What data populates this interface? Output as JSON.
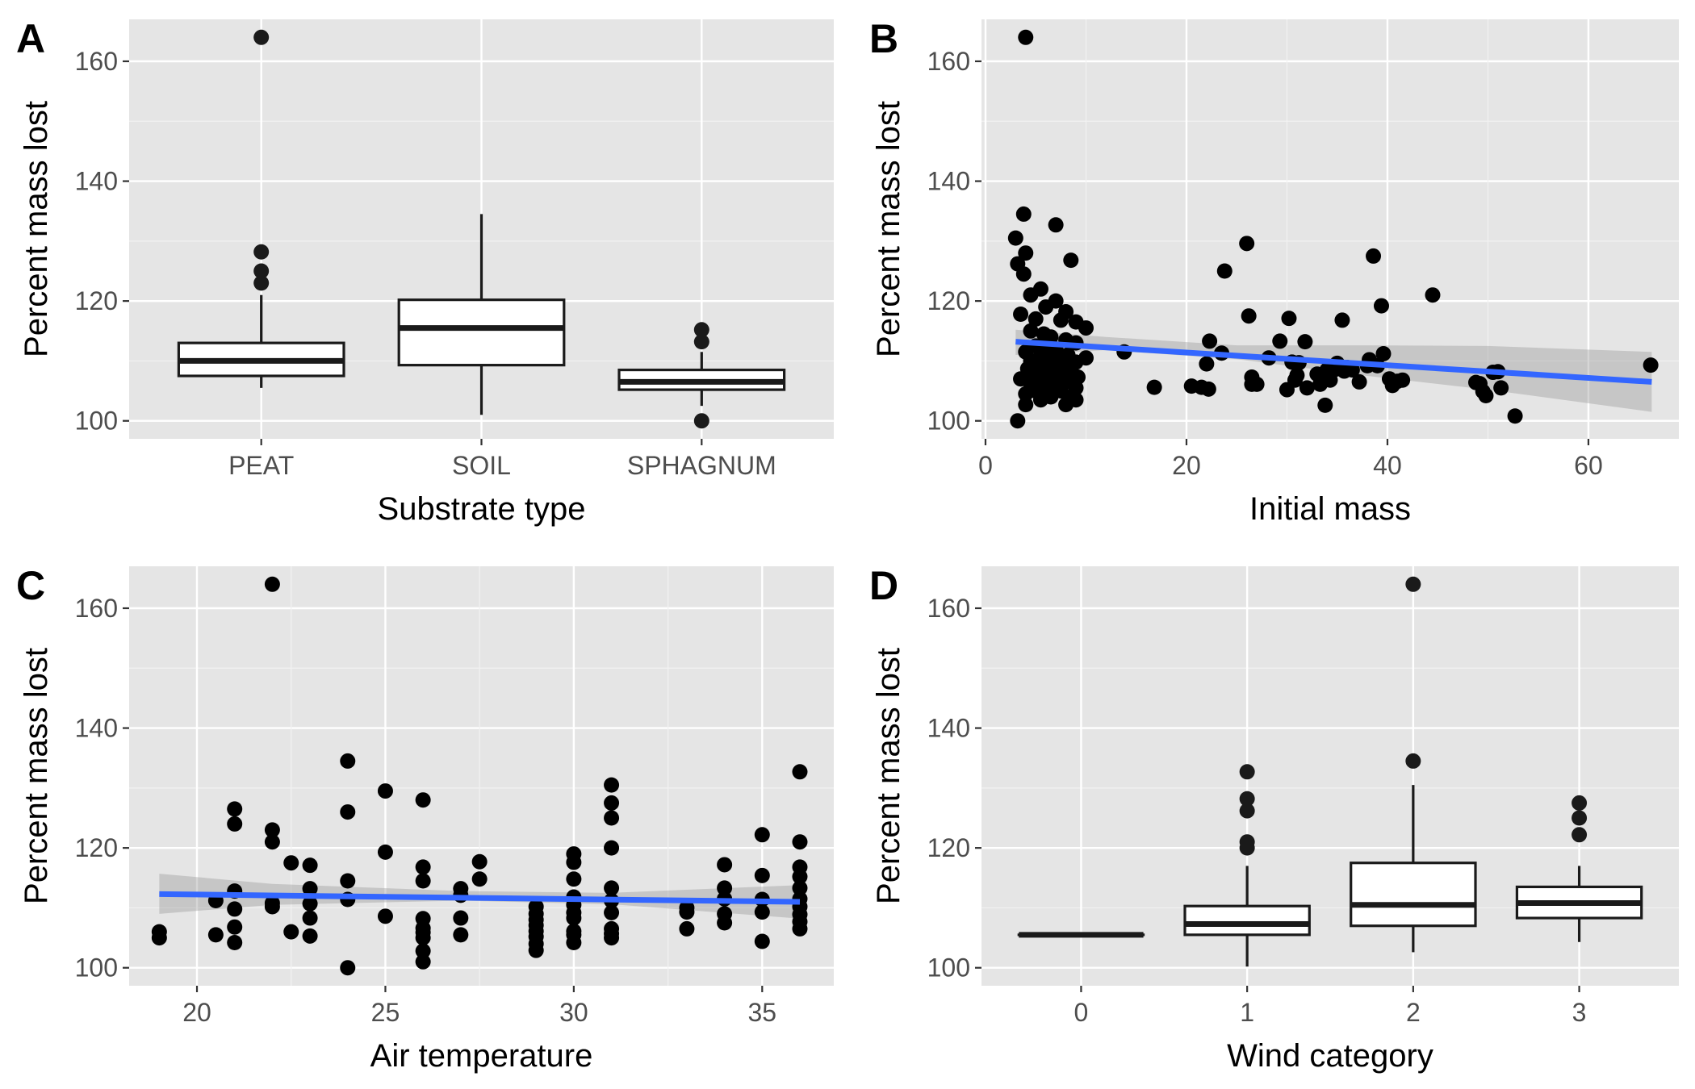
{
  "chart_data": [
    {
      "panel": "A",
      "type": "box",
      "xlabel": "Substrate type",
      "ylabel": "Percent mass lost",
      "ylim": [
        97,
        167
      ],
      "yticks": [
        100,
        120,
        140,
        160
      ],
      "categories": [
        "PEAT",
        "SOIL",
        "SPHAGNUM"
      ],
      "boxes": [
        {
          "category": "PEAT",
          "lower_whisker": 105.5,
          "q1": 107.5,
          "median": 110.0,
          "q3": 113.0,
          "upper_whisker": 121.0,
          "outliers": [
            123.0,
            125.0,
            128.2,
            164.0
          ]
        },
        {
          "category": "SOIL",
          "lower_whisker": 101.0,
          "q1": 109.3,
          "median": 115.5,
          "q3": 120.2,
          "upper_whisker": 134.5,
          "outliers": []
        },
        {
          "category": "SPHAGNUM",
          "lower_whisker": 102.5,
          "q1": 105.2,
          "median": 106.5,
          "q3": 108.5,
          "upper_whisker": 111.5,
          "outliers": [
            100.0,
            113.2,
            115.2
          ]
        }
      ]
    },
    {
      "panel": "B",
      "type": "scatter",
      "xlabel": "Initial mass",
      "ylabel": "Percent mass lost",
      "xlim": [
        -0.4,
        69
      ],
      "ylim": [
        97,
        167
      ],
      "xticks": [
        0,
        20,
        40,
        60
      ],
      "yticks": [
        100,
        120,
        140,
        160
      ],
      "points": [
        [
          4,
          164
        ],
        [
          3.8,
          134.5
        ],
        [
          7,
          132.7
        ],
        [
          3,
          130.5
        ],
        [
          4,
          128
        ],
        [
          3.2,
          126.2
        ],
        [
          8.5,
          126.8
        ],
        [
          3.8,
          124.5
        ],
        [
          5.5,
          122
        ],
        [
          4.5,
          121
        ],
        [
          7,
          120
        ],
        [
          6,
          119
        ],
        [
          8,
          118.2
        ],
        [
          3.5,
          117.8
        ],
        [
          5,
          117
        ],
        [
          7.5,
          116.8
        ],
        [
          9,
          116.5
        ],
        [
          10,
          115.5
        ],
        [
          4.5,
          115
        ],
        [
          5.8,
          114.5
        ],
        [
          6.5,
          114
        ],
        [
          8,
          113.5
        ],
        [
          9,
          113
        ],
        [
          5,
          112.5
        ],
        [
          6.2,
          112
        ],
        [
          7,
          112
        ],
        [
          4,
          111.5
        ],
        [
          5.5,
          111
        ],
        [
          6.8,
          111
        ],
        [
          8.2,
          111
        ],
        [
          10,
          110.5
        ],
        [
          4.5,
          110
        ],
        [
          5,
          110
        ],
        [
          6,
          110
        ],
        [
          7.5,
          110
        ],
        [
          9,
          109.8
        ],
        [
          5,
          109.5
        ],
        [
          6.3,
          109.2
        ],
        [
          8,
          109
        ],
        [
          4.2,
          108.7
        ],
        [
          6,
          108.5
        ],
        [
          7,
          108.5
        ],
        [
          8.5,
          108.2
        ],
        [
          5.2,
          108
        ],
        [
          6.8,
          108
        ],
        [
          4.8,
          107.5
        ],
        [
          7.2,
          107.5
        ],
        [
          9.2,
          107.3
        ],
        [
          3.5,
          107
        ],
        [
          5.5,
          107
        ],
        [
          6.5,
          106.8
        ],
        [
          8,
          106.5
        ],
        [
          4.5,
          106.2
        ],
        [
          7,
          106
        ],
        [
          6,
          105.8
        ],
        [
          9,
          105.5
        ],
        [
          5,
          105
        ],
        [
          7.5,
          105
        ],
        [
          4,
          104.5
        ],
        [
          8.5,
          104
        ],
        [
          6.5,
          104
        ],
        [
          5.5,
          103.5
        ],
        [
          9,
          103.5
        ],
        [
          4,
          102.7
        ],
        [
          8,
          102.7
        ],
        [
          3.2,
          100
        ],
        [
          13.8,
          111.5
        ],
        [
          16.8,
          105.6
        ],
        [
          20.5,
          105.8
        ],
        [
          21.5,
          105.6
        ],
        [
          22.2,
          105.3
        ],
        [
          22,
          109.5
        ],
        [
          22.3,
          113.3
        ],
        [
          23.5,
          111.3
        ],
        [
          23.8,
          125
        ],
        [
          26,
          129.6
        ],
        [
          26.2,
          117.5
        ],
        [
          26.5,
          107.3
        ],
        [
          26.5,
          106.1
        ],
        [
          27,
          106.1
        ],
        [
          28.2,
          110.5
        ],
        [
          29.3,
          113.3
        ],
        [
          30,
          105.2
        ],
        [
          30.2,
          117.1
        ],
        [
          30.5,
          109.8
        ],
        [
          30.8,
          106.8
        ],
        [
          31,
          107.6
        ],
        [
          31.2,
          109.7
        ],
        [
          31.8,
          113.2
        ],
        [
          32,
          105.5
        ],
        [
          33,
          107.8
        ],
        [
          33.3,
          106.1
        ],
        [
          33.8,
          102.6
        ],
        [
          34,
          108.5
        ],
        [
          34.3,
          106.8
        ],
        [
          34.8,
          108.6
        ],
        [
          35,
          109.6
        ],
        [
          35.5,
          116.8
        ],
        [
          35.7,
          108.3
        ],
        [
          36,
          108.9
        ],
        [
          36.5,
          108.5
        ],
        [
          37.2,
          106.5
        ],
        [
          38,
          109.2
        ],
        [
          38.2,
          110.2
        ],
        [
          38.6,
          127.5
        ],
        [
          39,
          109.2
        ],
        [
          39.4,
          119.2
        ],
        [
          39.6,
          111.2
        ],
        [
          40.2,
          107
        ],
        [
          40.5,
          105.9
        ],
        [
          41,
          106.6
        ],
        [
          41.5,
          106.8
        ],
        [
          44.5,
          121
        ],
        [
          48.8,
          106.4
        ],
        [
          49.2,
          106.2
        ],
        [
          49.5,
          104.9
        ],
        [
          49.8,
          104.2
        ],
        [
          50.5,
          108.1
        ],
        [
          51,
          108.2
        ],
        [
          51.3,
          105.5
        ],
        [
          52.7,
          100.8
        ],
        [
          66.2,
          109.3
        ]
      ],
      "fit": {
        "x": [
          3,
          66.3
        ],
        "y": [
          113.2,
          106.5
        ]
      },
      "ribbon": {
        "x": [
          3,
          12,
          25,
          38,
          50,
          66.3
        ],
        "lower": [
          111.0,
          111.8,
          110.3,
          107.5,
          105.2,
          101.5
        ],
        "upper": [
          115.2,
          114.0,
          112.6,
          112.6,
          112.5,
          111.5
        ]
      }
    },
    {
      "panel": "C",
      "type": "scatter",
      "xlabel": "Air temperature",
      "ylabel": "Percent mass lost",
      "xlim": [
        18.2,
        36.9
      ],
      "ylim": [
        97,
        167
      ],
      "xticks": [
        20,
        25,
        30,
        35
      ],
      "yticks": [
        100,
        120,
        140,
        160
      ],
      "points": [
        [
          19,
          106
        ],
        [
          19,
          105
        ],
        [
          20.5,
          111.2
        ],
        [
          20.5,
          105.5
        ],
        [
          21,
          126.5
        ],
        [
          21,
          124
        ],
        [
          21,
          112.8
        ],
        [
          21,
          109.8
        ],
        [
          21,
          106.8
        ],
        [
          21,
          104.2
        ],
        [
          22,
          164
        ],
        [
          22,
          123
        ],
        [
          22,
          121
        ],
        [
          22,
          110.8
        ],
        [
          22,
          110.2
        ],
        [
          22.5,
          117.5
        ],
        [
          22.5,
          106
        ],
        [
          23,
          117.1
        ],
        [
          23,
          113.2
        ],
        [
          23,
          110.7
        ],
        [
          23,
          108.3
        ],
        [
          23,
          105.3
        ],
        [
          24,
          100
        ],
        [
          24,
          134.5
        ],
        [
          24,
          126
        ],
        [
          24,
          114.5
        ],
        [
          24,
          111.4
        ],
        [
          25,
          129.5
        ],
        [
          25,
          119.3
        ],
        [
          25,
          108.6
        ],
        [
          26,
          128
        ],
        [
          26,
          116.8
        ],
        [
          26,
          114.5
        ],
        [
          26,
          108.2
        ],
        [
          26,
          106.6
        ],
        [
          26,
          105.9
        ],
        [
          26,
          105
        ],
        [
          26,
          102.8
        ],
        [
          26,
          101
        ],
        [
          27,
          113.2
        ],
        [
          27,
          112.1
        ],
        [
          27,
          108.3
        ],
        [
          27,
          105.5
        ],
        [
          27.5,
          117.7
        ],
        [
          27.5,
          114.8
        ],
        [
          29,
          110.2
        ],
        [
          29,
          109
        ],
        [
          29,
          108
        ],
        [
          29,
          107.1
        ],
        [
          29,
          106.1
        ],
        [
          29,
          105.2
        ],
        [
          29,
          104
        ],
        [
          29,
          102.9
        ],
        [
          30,
          119
        ],
        [
          30,
          117.6
        ],
        [
          30,
          114.8
        ],
        [
          30,
          111.8
        ],
        [
          30,
          110.5
        ],
        [
          30,
          109.2
        ],
        [
          30,
          108.3
        ],
        [
          30,
          106.1
        ],
        [
          30,
          105.5
        ],
        [
          30,
          104.2
        ],
        [
          31,
          130.5
        ],
        [
          31,
          127.5
        ],
        [
          31,
          125
        ],
        [
          31,
          120
        ],
        [
          31,
          113.3
        ],
        [
          31,
          111.2
        ],
        [
          31,
          109.2
        ],
        [
          31,
          106.5
        ],
        [
          31,
          105.7
        ],
        [
          31,
          105
        ],
        [
          33,
          110
        ],
        [
          33,
          109.3
        ],
        [
          33,
          106.5
        ],
        [
          34,
          117.2
        ],
        [
          34,
          113.3
        ],
        [
          34,
          111.5
        ],
        [
          34,
          109
        ],
        [
          34,
          107.5
        ],
        [
          35,
          122.2
        ],
        [
          35,
          115.4
        ],
        [
          35,
          111.4
        ],
        [
          35,
          109.3
        ],
        [
          35,
          104.4
        ],
        [
          36,
          132.7
        ],
        [
          36,
          121
        ],
        [
          36,
          116.8
        ],
        [
          36,
          115.2
        ],
        [
          36,
          113.3
        ],
        [
          36,
          111.5
        ],
        [
          36,
          110.2
        ],
        [
          36,
          108.9
        ],
        [
          36,
          107.7
        ],
        [
          36,
          106.5
        ]
      ],
      "fit": {
        "x": [
          19,
          36
        ],
        "y": [
          112.3,
          111.0
        ]
      },
      "ribbon": {
        "x": [
          19,
          22,
          27,
          31,
          36
        ],
        "lower": [
          109.0,
          110.5,
          111.2,
          110.6,
          108.2
        ],
        "upper": [
          115.7,
          114.0,
          112.8,
          112.5,
          113.8
        ]
      }
    },
    {
      "panel": "D",
      "type": "box",
      "xlabel": "Wind category",
      "ylabel": "Percent mass lost",
      "ylim": [
        97,
        167
      ],
      "yticks": [
        100,
        120,
        140,
        160
      ],
      "categories": [
        "0",
        "1",
        "2",
        "3"
      ],
      "boxes": [
        {
          "category": "0",
          "lower_whisker": 105.5,
          "q1": 105.5,
          "median": 105.5,
          "q3": 105.5,
          "upper_whisker": 105.5,
          "outliers": []
        },
        {
          "category": "1",
          "lower_whisker": 100.2,
          "q1": 105.5,
          "median": 107.3,
          "q3": 110.3,
          "upper_whisker": 117.0,
          "outliers": [
            120.0,
            121.0,
            126.2,
            128.2,
            132.7
          ]
        },
        {
          "category": "2",
          "lower_whisker": 102.6,
          "q1": 107.0,
          "median": 110.5,
          "q3": 117.5,
          "upper_whisker": 130.5,
          "outliers": [
            134.5,
            164.0
          ]
        },
        {
          "category": "3",
          "lower_whisker": 104.3,
          "q1": 108.3,
          "median": 110.8,
          "q3": 113.5,
          "upper_whisker": 117.0,
          "outliers": [
            122.2,
            125.0,
            127.5
          ]
        }
      ]
    }
  ]
}
